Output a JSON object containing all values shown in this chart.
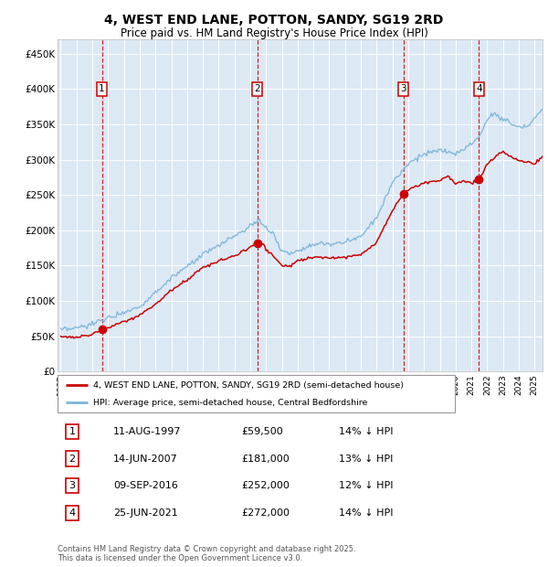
{
  "title": "4, WEST END LANE, POTTON, SANDY, SG19 2RD",
  "subtitle": "Price paid vs. HM Land Registry's House Price Index (HPI)",
  "title_fontsize": 10,
  "subtitle_fontsize": 8.5,
  "background_color": "#dce9f5",
  "fig_bg_color": "#ffffff",
  "ylim": [
    0,
    470000
  ],
  "xlim_start": 1994.8,
  "xlim_end": 2025.5,
  "yticks": [
    0,
    50000,
    100000,
    150000,
    200000,
    250000,
    300000,
    350000,
    400000,
    450000
  ],
  "ytick_labels": [
    "£0",
    "£50K",
    "£100K",
    "£150K",
    "£200K",
    "£250K",
    "£300K",
    "£350K",
    "£400K",
    "£450K"
  ],
  "hpi_color": "#7ab4d8",
  "price_color": "#cc0000",
  "sale_marker_color": "#cc0000",
  "sale_dates": [
    1997.61,
    2007.45,
    2016.69,
    2021.48
  ],
  "sale_prices": [
    59500,
    181000,
    252000,
    272000
  ],
  "sale_labels": [
    "1",
    "2",
    "3",
    "4"
  ],
  "vline_color": "#cc0000",
  "legend_label_price": "4, WEST END LANE, POTTON, SANDY, SG19 2RD (semi-detached house)",
  "legend_label_hpi": "HPI: Average price, semi-detached house, Central Bedfordshire",
  "table_data": [
    [
      "1",
      "11-AUG-1997",
      "£59,500",
      "14% ↓ HPI"
    ],
    [
      "2",
      "14-JUN-2007",
      "£181,000",
      "13% ↓ HPI"
    ],
    [
      "3",
      "09-SEP-2016",
      "£252,000",
      "12% ↓ HPI"
    ],
    [
      "4",
      "25-JUN-2021",
      "£272,000",
      "14% ↓ HPI"
    ]
  ],
  "footer": "Contains HM Land Registry data © Crown copyright and database right 2025.\nThis data is licensed under the Open Government Licence v3.0.",
  "grid_color": "#ffffff",
  "label_box_color": "#ffffff",
  "label_box_edge": "#cc0000"
}
